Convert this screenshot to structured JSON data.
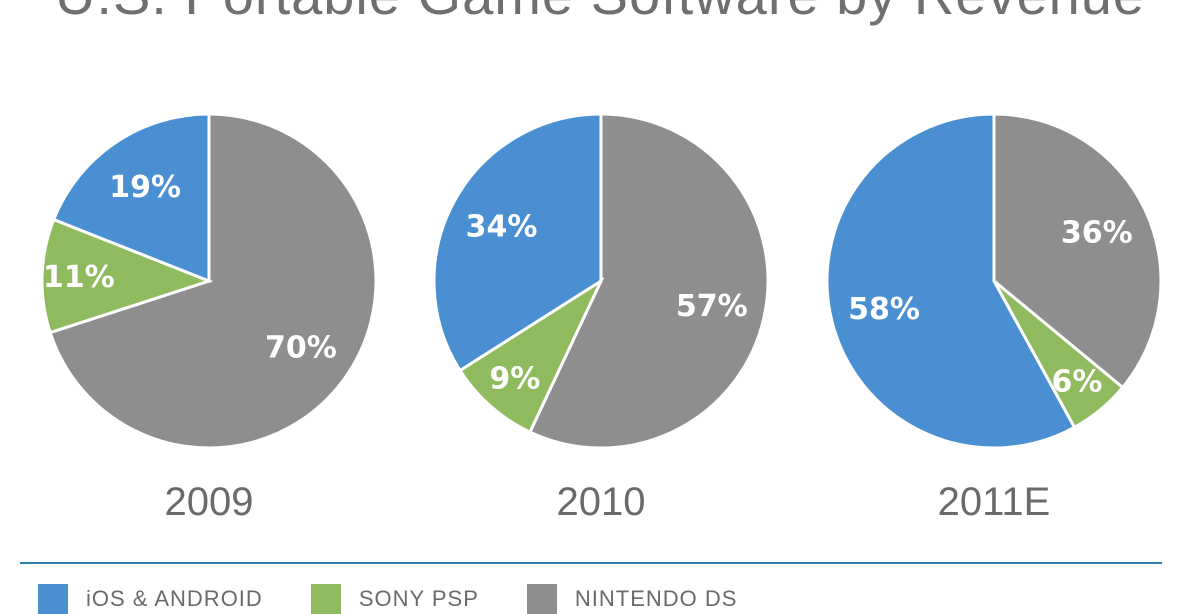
{
  "chart_data": {
    "type": "pie",
    "title": "U.S. Portable Game Software by Revenue",
    "legend": [
      {
        "name": "iOS & ANDROID",
        "color": "#4a8fd1"
      },
      {
        "name": "SONY PSP",
        "color": "#8fba5e"
      },
      {
        "name": "NINTENDO DS",
        "color": "#8e8e8e"
      }
    ],
    "pies": [
      {
        "category": "2009",
        "slices": [
          {
            "name": "iOS & ANDROID",
            "value": 19,
            "label": "19%"
          },
          {
            "name": "SONY PSP",
            "value": 11,
            "label": "11%"
          },
          {
            "name": "NINTENDO DS",
            "value": 70,
            "label": "70%"
          }
        ]
      },
      {
        "category": "2010",
        "slices": [
          {
            "name": "iOS & ANDROID",
            "value": 34,
            "label": "34%"
          },
          {
            "name": "SONY PSP",
            "value": 9,
            "label": "9%"
          },
          {
            "name": "NINTENDO DS",
            "value": 57,
            "label": "57%"
          }
        ]
      },
      {
        "category": "2011E",
        "slices": [
          {
            "name": "iOS & ANDROID",
            "value": 58,
            "label": "58%"
          },
          {
            "name": "SONY PSP",
            "value": 6,
            "label": "6%"
          },
          {
            "name": "NINTENDO DS",
            "value": 36,
            "label": "36%"
          }
        ]
      }
    ]
  }
}
